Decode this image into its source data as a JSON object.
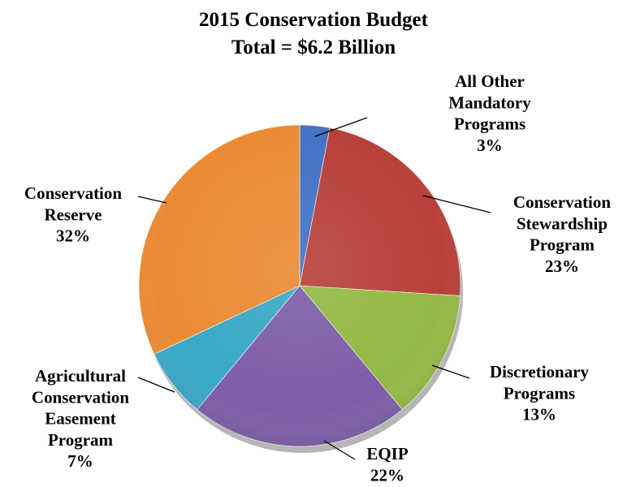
{
  "chart_data": {
    "type": "pie",
    "title": "2015 Conservation Budget",
    "subtitle": "Total = $6.2 Billion",
    "slices": [
      {
        "name": "All Other Mandatory Programs",
        "label_lines": [
          "All Other",
          "Mandatory",
          "Programs"
        ],
        "value": 3,
        "value_label": "3%",
        "color": "#4472c4"
      },
      {
        "name": "Conservation Stewardship Program",
        "label_lines": [
          "Conservation",
          "Stewardship",
          "Program"
        ],
        "value": 23,
        "value_label": "23%",
        "color": "#b8403a"
      },
      {
        "name": "Discretionary Programs",
        "label_lines": [
          "Discretionary",
          "Programs"
        ],
        "value": 13,
        "value_label": "13%",
        "color": "#93b944"
      },
      {
        "name": "EQIP",
        "label_lines": [
          "EQIP"
        ],
        "value": 22,
        "value_label": "22%",
        "color": "#7e5ea8"
      },
      {
        "name": "Agricultural Conservation Easement Program",
        "label_lines": [
          "Agricultural",
          "Conservation",
          "Easement",
          "Program"
        ],
        "value": 7,
        "value_label": "7%",
        "color": "#38a9c6"
      },
      {
        "name": "Conservation Reserve",
        "label_lines": [
          "Conservation",
          "Reserve"
        ],
        "value": 32,
        "value_label": "32%",
        "color": "#ec8a33"
      }
    ],
    "start_angle_deg": 0,
    "direction": "clockwise",
    "legend": "none"
  }
}
